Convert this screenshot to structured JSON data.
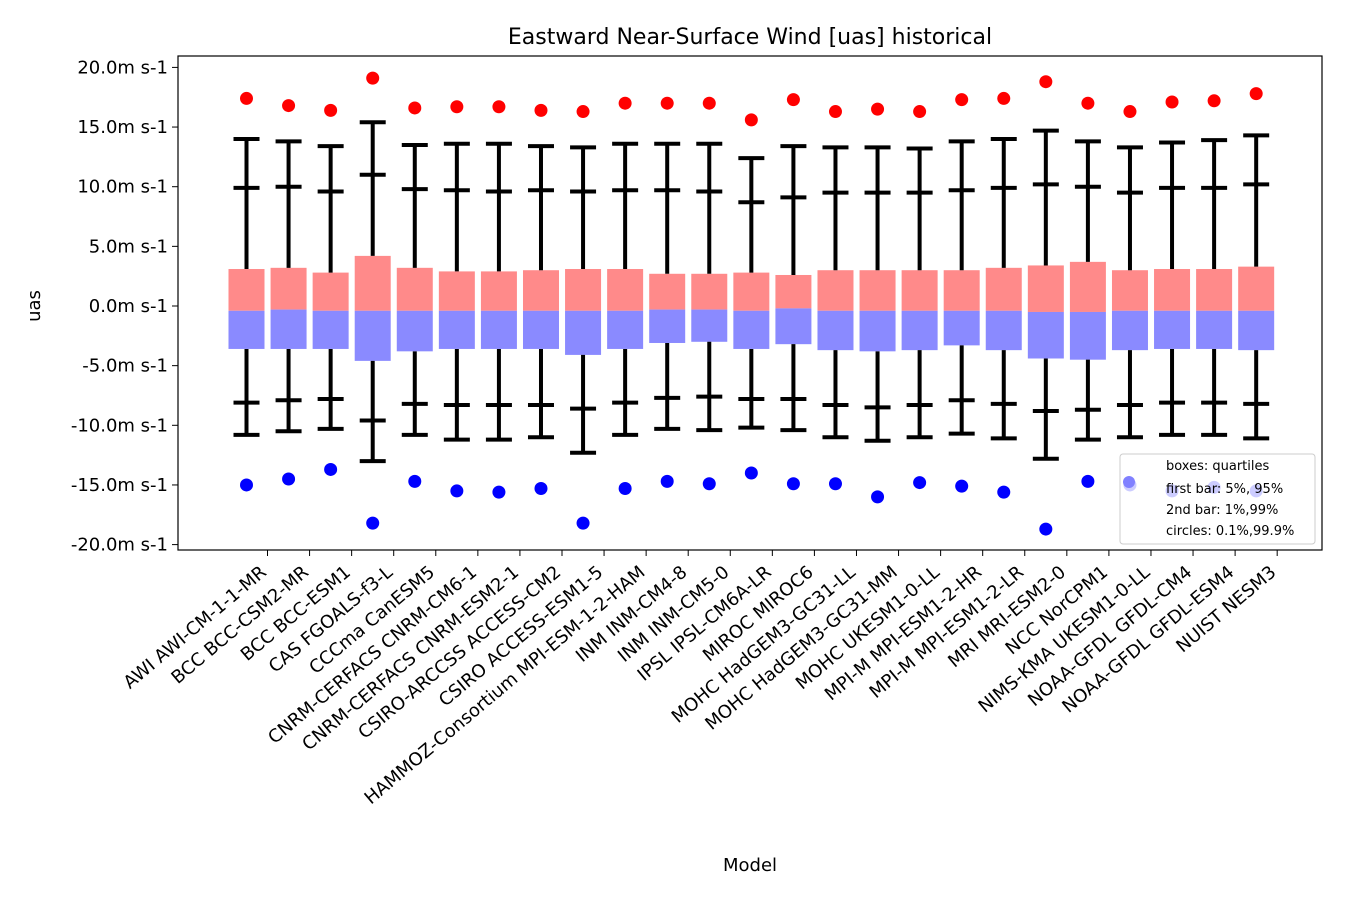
{
  "chart_data": {
    "type": "box",
    "title": "Eastward Near-Surface Wind [uas] historical",
    "xlabel": "Model",
    "ylabel": "uas",
    "ylim": [
      -20.5,
      20.8
    ],
    "y_ticks": [
      20,
      15,
      10,
      5,
      0,
      -5,
      -10,
      -15,
      -20
    ],
    "y_tick_labels": [
      "20.0m s-1",
      "15.0m s-1",
      "10.0m s-1",
      "5.0m s-1",
      "0.0m s-1",
      "-5.0m s-1",
      "-10.0m s-1",
      "-15.0m s-1",
      "-20.0m s-1"
    ],
    "colors": {
      "box_upper": "#ff8a8a",
      "box_lower": "#8a8aff",
      "whisker": "#000000",
      "max_circle": "#ff0000",
      "min_circle": "#0000ff",
      "legend_circle": "#8080ff"
    },
    "legend": {
      "position": "lower-right",
      "lines": [
        "boxes: quartiles",
        "first bar: 5%, 95%",
        "2nd bar: 1%,99%",
        "circles: 0.1%,99.9%"
      ]
    },
    "categories": [
      "AWI AWI-CM-1-1-MR",
      "BCC BCC-CSM2-MR",
      "BCC BCC-ESM1",
      "CAS FGOALS-f3-L",
      "CCCma CanESM5",
      "CNRM-CERFACS CNRM-CM6-1",
      "CNRM-CERFACS CNRM-ESM2-1",
      "CSIRO-ARCCSS ACCESS-CM2",
      "CSIRO ACCESS-ESM1-5",
      "HAMMOZ-Consortium MPI-ESM-1-2-HAM",
      "INM INM-CM4-8",
      "INM INM-CM5-0",
      "IPSL IPSL-CM6A-LR",
      "MIROC MIROC6",
      "MOHC HadGEM3-GC31-LL",
      "MOHC HadGEM3-GC31-MM",
      "MOHC UKESM1-0-LL",
      "MPI-M MPI-ESM1-2-HR",
      "MPI-M MPI-ESM1-2-LR",
      "MRI MRI-ESM2-0",
      "NCC NorCPM1",
      "NIMS-KMA UKESM1-0-LL",
      "NOAA-GFDL GFDL-CM4",
      "NOAA-GFDL GFDL-ESM4",
      "NUIST NESM3"
    ],
    "series": [
      {
        "name": "0.1%",
        "values": [
          -15.0,
          -14.5,
          -13.7,
          -18.2,
          -14.7,
          -15.5,
          -15.6,
          -15.3,
          -18.2,
          -15.3,
          -14.7,
          -14.9,
          -14.0,
          -14.9,
          -14.9,
          -16.0,
          -14.8,
          -15.1,
          -15.6,
          -18.7,
          -14.7,
          -15.0,
          -15.5,
          -15.2,
          -15.5
        ]
      },
      {
        "name": "1%",
        "values": [
          -10.8,
          -10.5,
          -10.3,
          -13.0,
          -10.8,
          -11.2,
          -11.2,
          -11.0,
          -12.3,
          -10.8,
          -10.3,
          -10.4,
          -10.2,
          -10.4,
          -11.0,
          -11.3,
          -11.0,
          -10.7,
          -11.1,
          -12.8,
          -11.2,
          -11.0,
          -10.8,
          -10.8,
          -11.1
        ]
      },
      {
        "name": "5%",
        "values": [
          -8.1,
          -7.9,
          -7.8,
          -9.6,
          -8.2,
          -8.3,
          -8.3,
          -8.3,
          -8.6,
          -8.1,
          -7.7,
          -7.6,
          -7.8,
          -7.8,
          -8.3,
          -8.5,
          -8.3,
          -7.9,
          -8.2,
          -8.8,
          -8.7,
          -8.3,
          -8.1,
          -8.1,
          -8.2
        ]
      },
      {
        "name": "25%",
        "values": [
          -3.6,
          -3.6,
          -3.6,
          -4.6,
          -3.8,
          -3.6,
          -3.6,
          -3.6,
          -4.1,
          -3.6,
          -3.1,
          -3.0,
          -3.6,
          -3.2,
          -3.7,
          -3.8,
          -3.7,
          -3.3,
          -3.7,
          -4.4,
          -4.5,
          -3.7,
          -3.6,
          -3.6,
          -3.7
        ]
      },
      {
        "name": "50%",
        "values": [
          -0.4,
          -0.3,
          -0.4,
          -0.4,
          -0.4,
          -0.4,
          -0.4,
          -0.4,
          -0.4,
          -0.4,
          -0.3,
          -0.3,
          -0.4,
          -0.2,
          -0.4,
          -0.4,
          -0.4,
          -0.4,
          -0.4,
          -0.5,
          -0.5,
          -0.4,
          -0.4,
          -0.4,
          -0.4
        ]
      },
      {
        "name": "75%",
        "values": [
          3.1,
          3.2,
          2.8,
          4.2,
          3.2,
          2.9,
          2.9,
          3.0,
          3.1,
          3.1,
          2.7,
          2.7,
          2.8,
          2.6,
          3.0,
          3.0,
          3.0,
          3.0,
          3.2,
          3.4,
          3.7,
          3.0,
          3.1,
          3.1,
          3.3
        ]
      },
      {
        "name": "95%",
        "values": [
          9.9,
          10.0,
          9.6,
          11.0,
          9.8,
          9.7,
          9.6,
          9.7,
          9.6,
          9.7,
          9.7,
          9.6,
          8.7,
          9.1,
          9.5,
          9.5,
          9.5,
          9.7,
          9.9,
          10.2,
          10.0,
          9.5,
          9.9,
          9.9,
          10.2
        ]
      },
      {
        "name": "99%",
        "values": [
          14.0,
          13.8,
          13.4,
          15.4,
          13.5,
          13.6,
          13.6,
          13.4,
          13.3,
          13.6,
          13.6,
          13.6,
          12.4,
          13.4,
          13.3,
          13.3,
          13.2,
          13.8,
          14.0,
          14.7,
          13.8,
          13.3,
          13.7,
          13.9,
          14.3
        ]
      },
      {
        "name": "99.9%",
        "values": [
          17.4,
          16.8,
          16.4,
          19.1,
          16.6,
          16.7,
          16.7,
          16.4,
          16.3,
          17.0,
          17.0,
          17.0,
          15.6,
          17.3,
          16.3,
          16.5,
          16.3,
          17.3,
          17.4,
          18.8,
          17.0,
          16.3,
          17.1,
          17.2,
          17.8
        ]
      }
    ]
  }
}
